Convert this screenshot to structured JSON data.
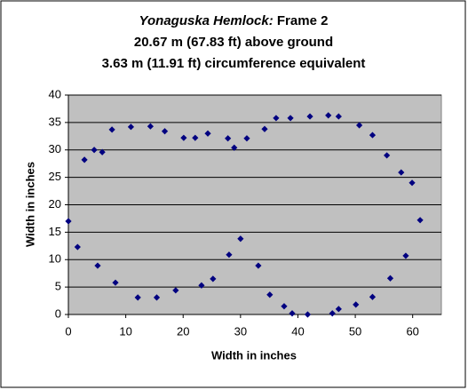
{
  "chart_data": {
    "type": "scatter",
    "title_parts": [
      "Yonaguska Hemlock:",
      "Frame 2"
    ],
    "subtitle_lines": [
      "20.67 m (67.83 ft) above ground",
      "3.63 m (11.91 ft) circumference equivalent"
    ],
    "x_label": "Width in inches",
    "y_label": "Width in inches",
    "color": "#000080",
    "plot_background": "#c0c0c0",
    "grid": true,
    "xlim": [
      0,
      65
    ],
    "xticks": [
      0,
      10,
      20,
      30,
      40,
      50,
      60
    ],
    "ylim": [
      0,
      40
    ],
    "yticks": [
      0,
      5,
      10,
      15,
      20,
      25,
      30,
      35,
      40
    ],
    "x": [
      0,
      1.6,
      2.8,
      4.5,
      5.1,
      5.9,
      7.6,
      8.2,
      10.9,
      12.1,
      14.3,
      15.4,
      16.8,
      18.7,
      20.1,
      22.1,
      23.2,
      24.3,
      25.2,
      27.8,
      28.0,
      28.9,
      30.0,
      31.1,
      33.1,
      34.2,
      35.1,
      36.2,
      37.6,
      38.7,
      39.0,
      41.7,
      42.1,
      45.3,
      46.0,
      47.1,
      47.1,
      50.1,
      50.7,
      53.0,
      53.0,
      55.5,
      56.1,
      58.0,
      58.8,
      59.9,
      61.3
    ],
    "y": [
      17.0,
      12.3,
      28.2,
      30.0,
      8.9,
      29.6,
      33.7,
      5.8,
      34.2,
      3.1,
      34.3,
      3.1,
      33.4,
      4.4,
      32.2,
      32.2,
      5.3,
      33.0,
      6.5,
      32.1,
      10.9,
      30.4,
      13.8,
      32.1,
      8.9,
      33.8,
      3.6,
      35.8,
      1.5,
      35.8,
      0.2,
      0,
      36.1,
      36.3,
      0.2,
      36.1,
      1.0,
      1.8,
      34.5,
      3.2,
      32.7,
      29.0,
      6.6,
      25.9,
      10.7,
      24.0,
      17.2
    ]
  }
}
